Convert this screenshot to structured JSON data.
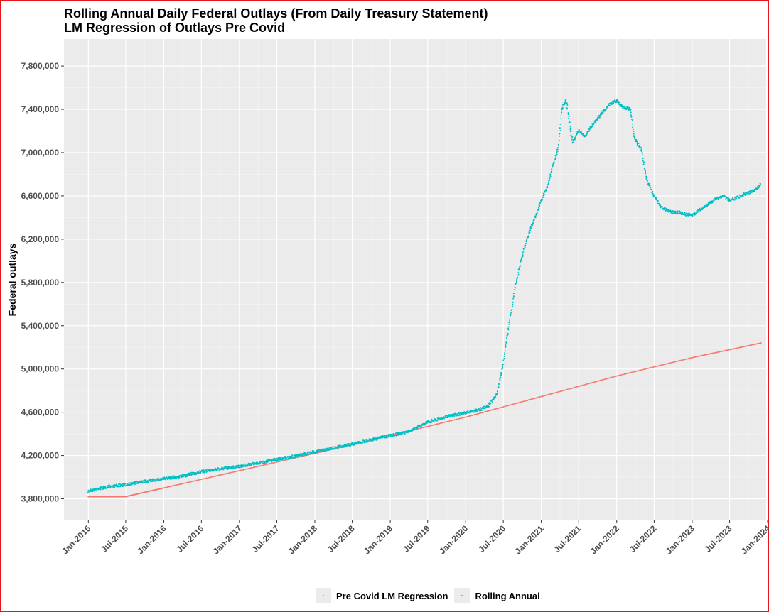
{
  "chart_data": {
    "type": "scatter",
    "title": "Rolling Annual Daily Federal Outlays (From Daily Treasury Statement)",
    "subtitle": "LM Regression of Outlays Pre Covid",
    "xlabel": "",
    "ylabel": "Federal outlays",
    "x_range": [
      "2014-09-05",
      "2023-12-25"
    ],
    "ylim": [
      3600000,
      8050000
    ],
    "y_ticks": [
      3800000,
      4200000,
      4600000,
      5000000,
      5400000,
      5800000,
      6200000,
      6600000,
      7000000,
      7400000,
      7800000
    ],
    "y_tick_labels": [
      "3,800,000",
      "4,200,000",
      "4,600,000",
      "5,000,000",
      "5,400,000",
      "5,800,000",
      "6,200,000",
      "6,600,000",
      "7,000,000",
      "7,400,000",
      "7,800,000"
    ],
    "x_ticks": [
      "2015-01-01",
      "2015-07-01",
      "2016-01-01",
      "2016-07-01",
      "2017-01-01",
      "2017-07-01",
      "2018-01-01",
      "2018-07-01",
      "2019-01-01",
      "2019-07-01",
      "2020-01-01",
      "2020-07-01",
      "2021-01-01",
      "2021-07-01",
      "2022-01-01",
      "2022-07-01",
      "2023-01-01",
      "2023-07-01",
      "2024-01-01"
    ],
    "x_tick_labels": [
      "Jan-2015",
      "Jul-2015",
      "Jan-2016",
      "Jul-2016",
      "Jan-2017",
      "Jul-2017",
      "Jan-2018",
      "Jul-2018",
      "Jan-2019",
      "Jul-2019",
      "Jan-2020",
      "Jul-2020",
      "Jan-2021",
      "Jul-2021",
      "Jan-2022",
      "Jul-2022",
      "Jan-2023",
      "Jul-2023",
      "Jan-2024"
    ],
    "grid": true,
    "legend_position": "bottom",
    "series": [
      {
        "name": "Pre Covid LM Regression",
        "color": "#f8766d",
        "x": [
          "2015-01-01",
          "2015-07-01",
          "2016-01-01",
          "2017-01-01",
          "2018-01-01",
          "2019-01-01",
          "2020-01-01",
          "2021-01-01",
          "2022-01-01",
          "2023-01-01",
          "2023-11-30"
        ],
        "y": [
          3820000,
          3820000,
          3900000,
          4060000,
          4220000,
          4385000,
          4555000,
          4745000,
          4935000,
          5105000,
          5240000
        ]
      },
      {
        "name": "Rolling Annual",
        "color": "#00bfc4",
        "x": [
          "2015-01-01",
          "2015-04-01",
          "2015-07-01",
          "2015-10-01",
          "2016-01-01",
          "2016-04-01",
          "2016-07-01",
          "2016-10-01",
          "2017-01-01",
          "2017-04-01",
          "2017-07-01",
          "2017-10-01",
          "2018-01-01",
          "2018-04-01",
          "2018-07-01",
          "2018-10-01",
          "2019-01-01",
          "2019-04-01",
          "2019-07-01",
          "2019-10-01",
          "2020-01-01",
          "2020-03-01",
          "2020-04-15",
          "2020-05-01",
          "2020-05-15",
          "2020-06-01",
          "2020-07-01",
          "2020-08-01",
          "2020-09-01",
          "2020-10-01",
          "2020-11-01",
          "2020-12-01",
          "2021-01-01",
          "2021-02-01",
          "2021-03-01",
          "2021-03-15",
          "2021-03-25",
          "2021-04-10",
          "2021-05-01",
          "2021-06-01",
          "2021-07-01",
          "2021-08-01",
          "2021-09-01",
          "2021-10-01",
          "2021-11-01",
          "2021-12-01",
          "2022-01-01",
          "2022-02-01",
          "2022-03-10",
          "2022-03-25",
          "2022-05-01",
          "2022-05-15",
          "2022-06-01",
          "2022-07-01",
          "2022-08-01",
          "2022-09-01",
          "2022-10-01",
          "2022-11-01",
          "2022-12-01",
          "2023-01-01",
          "2023-02-01",
          "2023-03-01",
          "2023-04-01",
          "2023-05-01",
          "2023-06-01",
          "2023-07-01",
          "2023-08-01",
          "2023-09-01",
          "2023-10-01",
          "2023-11-01",
          "2023-11-30"
        ],
        "y": [
          3870000,
          3910000,
          3930000,
          3960000,
          3985000,
          4010000,
          4050000,
          4075000,
          4100000,
          4130000,
          4165000,
          4195000,
          4235000,
          4270000,
          4305000,
          4345000,
          4385000,
          4420000,
          4510000,
          4560000,
          4595000,
          4620000,
          4650000,
          4690000,
          4720000,
          4780000,
          5050000,
          5450000,
          5800000,
          6050000,
          6250000,
          6400000,
          6550000,
          6700000,
          6900000,
          6980000,
          7050000,
          7400000,
          7480000,
          7100000,
          7200000,
          7150000,
          7250000,
          7320000,
          7390000,
          7450000,
          7480000,
          7420000,
          7400000,
          7150000,
          7020000,
          6850000,
          6720000,
          6600000,
          6500000,
          6470000,
          6450000,
          6445000,
          6430000,
          6420000,
          6460000,
          6500000,
          6540000,
          6580000,
          6600000,
          6560000,
          6580000,
          6610000,
          6630000,
          6650000,
          6710000
        ]
      }
    ]
  }
}
